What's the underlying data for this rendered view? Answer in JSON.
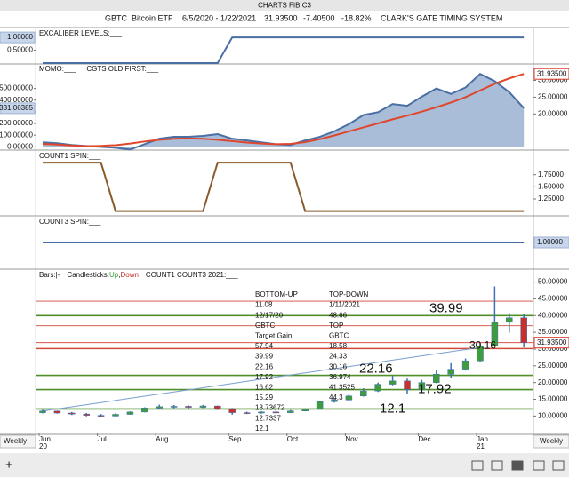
{
  "window": {
    "title": "CHARTS FIB C3"
  },
  "header": {
    "symbol": "GBTC",
    "name": "Bitcoin ETF",
    "range": "6/5/2020 - 1/22/2021",
    "last": "31.93500",
    "change": "-7.40500",
    "change_pct": "-18.82%",
    "system": "CLARK'S GATE TIMING SYSTEM"
  },
  "footer": {
    "left_interval": "Weekly",
    "right_interval": "Weekly",
    "add_button": "+"
  },
  "chart_data": [
    {
      "type": "line",
      "ytick_side": "left",
      "series": [
        {
          "name": "EXCALIBER LEVELS:___",
          "color": "#4a6fa5",
          "values": [
            0,
            0,
            0,
            0,
            0,
            0,
            0,
            0,
            0,
            0,
            0,
            0,
            0,
            1,
            1,
            1,
            1,
            1,
            1,
            1,
            1,
            1,
            1,
            1,
            1,
            1,
            1,
            1,
            1,
            1,
            1,
            1,
            1,
            1
          ]
        }
      ],
      "ylim": [
        0,
        1.35
      ],
      "yticks": [
        {
          "value": 0.5,
          "label": "0.50000"
        }
      ],
      "last_value": {
        "value": 1,
        "label": "1.00000"
      }
    },
    {
      "type": "line",
      "ytick_side": "left",
      "series": [
        {
          "name": "MOMO:___",
          "color": "#4a6fa5",
          "area_color": "#a9bcd8",
          "values": [
            39,
            31,
            16,
            8,
            0,
            -8,
            -23,
            23,
            70,
            86,
            86,
            94,
            109,
            70,
            55,
            39,
            23,
            16,
            55,
            86,
            133,
            195,
            273,
            297,
            367,
            352,
            430,
            500,
            453,
            508,
            625,
            563,
            469,
            331.06385
          ]
        },
        {
          "name": "CGTS OLD FIRST:___",
          "color": "#e0462a",
          "axis": "y2",
          "values": [
            11.1,
            10.9,
            10.6,
            10.4,
            10.5,
            10.7,
            11.2,
            11.8,
            12.3,
            12.6,
            12.7,
            12.6,
            12.3,
            11.9,
            11.5,
            11.2,
            11.0,
            11.1,
            11.6,
            12.5,
            13.6,
            14.8,
            16.0,
            17.2,
            18.4,
            19.5,
            20.7,
            22.0,
            23.4,
            25.0,
            27.0,
            29.0,
            30.6,
            31.935
          ]
        }
      ],
      "ylim": [
        -20,
        710
      ],
      "yticks": [
        {
          "value": 500,
          "label": "500.00000"
        },
        {
          "value": 400,
          "label": "400.00000"
        },
        {
          "value": 300,
          "label": "300.00000"
        },
        {
          "value": 200,
          "label": "200.00000"
        },
        {
          "value": 100,
          "label": "100.00000"
        },
        {
          "value": 0,
          "label": "0.00000"
        }
      ],
      "last_value": {
        "value": 331.06385,
        "label": "331.06385"
      },
      "y2lim": [
        9.5,
        34.9
      ],
      "y2ticks": [
        {
          "value": 30,
          "label": "30.00000"
        },
        {
          "value": 25,
          "label": "25.00000"
        },
        {
          "value": 20,
          "label": "20.00000"
        }
      ],
      "y2_last_value": {
        "value": 31.935,
        "label": "31.93500",
        "color": "#d9382c"
      }
    },
    {
      "type": "line",
      "ytick_side": "right",
      "series": [
        {
          "name": "COUNT1 SPIN:___",
          "color": "#8b5a2b",
          "values": [
            2,
            2,
            2,
            2,
            2,
            1,
            1,
            1,
            1,
            1,
            1,
            1,
            2,
            2,
            2,
            2,
            2,
            2,
            1,
            1,
            1,
            1,
            1,
            1,
            1,
            1,
            1,
            1,
            1,
            1,
            1,
            1,
            1,
            1
          ]
        }
      ],
      "ylim": [
        0.92,
        2.24
      ],
      "yticks": [
        {
          "value": 1.75,
          "label": "1.75000"
        },
        {
          "value": 1.5,
          "label": "1.50000"
        },
        {
          "value": 1.25,
          "label": "1.25000"
        }
      ]
    },
    {
      "type": "line",
      "ytick_side": "right",
      "series": [
        {
          "name": "COUNT3 SPIN:___",
          "color": "#4a6fa5",
          "values": [
            1,
            1,
            1,
            1,
            1,
            1,
            1,
            1,
            1,
            1,
            1,
            1,
            1,
            1,
            1,
            1,
            1,
            1,
            1,
            1,
            1,
            1,
            1,
            1,
            1,
            1,
            1,
            1,
            1,
            1,
            1,
            1,
            1,
            1
          ]
        }
      ],
      "ylim": [
        0,
        2
      ],
      "last_value": {
        "value": 1,
        "label": "1.00000"
      }
    },
    {
      "type": "candlestick",
      "ytick_side": "right",
      "legend": [
        {
          "text": "Bars:|-"
        },
        {
          "text": "Candlesticks:"
        },
        {
          "text": "Up",
          "color": "#3e9b3e"
        },
        {
          "text": ","
        },
        {
          "text": "Down",
          "color": "#c8302a"
        },
        {
          "text": "COUNT1 COUNT3 2021:___"
        }
      ],
      "categories": [
        "Jun",
        null,
        null,
        null,
        "Jul",
        null,
        null,
        null,
        "Aug",
        null,
        null,
        null,
        null,
        "Sep",
        null,
        null,
        null,
        "Oct",
        null,
        null,
        null,
        "Nov",
        null,
        null,
        null,
        null,
        "Dec",
        null,
        null,
        null,
        "Jan",
        null,
        null,
        null
      ],
      "category_years": [
        "20",
        null,
        null,
        null,
        null,
        null,
        null,
        null,
        null,
        null,
        null,
        null,
        null,
        null,
        null,
        null,
        null,
        null,
        null,
        null,
        null,
        null,
        null,
        null,
        null,
        null,
        null,
        null,
        null,
        null,
        "21",
        null,
        null,
        null
      ],
      "open": [
        11.0,
        11.5,
        10.9,
        10.6,
        10.2,
        10.0,
        10.5,
        11.2,
        12.4,
        12.8,
        12.9,
        12.6,
        13.0,
        12.2,
        11.0,
        10.9,
        11.2,
        11.0,
        11.5,
        12.0,
        14.3,
        14.8,
        16.0,
        17.5,
        19.5,
        20.5,
        18.0,
        20.0,
        22.5,
        24.0,
        26.5,
        31.0,
        38.0,
        39.34
      ],
      "high": [
        11.9,
        11.6,
        11.2,
        10.9,
        10.6,
        10.8,
        11.4,
        12.6,
        13.4,
        13.3,
        13.2,
        13.3,
        13.1,
        12.4,
        11.3,
        11.4,
        11.5,
        11.8,
        12.3,
        14.6,
        15.2,
        16.5,
        18.3,
        20.0,
        22.0,
        21.2,
        20.8,
        23.6,
        25.8,
        27.2,
        32.0,
        48.7,
        40.8,
        40.5
      ],
      "low": [
        10.8,
        10.7,
        10.3,
        9.9,
        9.8,
        9.9,
        10.4,
        11.1,
        12.2,
        12.3,
        12.2,
        12.4,
        11.8,
        10.4,
        10.6,
        10.7,
        10.8,
        10.9,
        11.4,
        11.9,
        14.0,
        14.6,
        15.8,
        17.2,
        19.2,
        16.5,
        17.6,
        19.8,
        21.5,
        23.6,
        26.2,
        30.8,
        34.9,
        30.5
      ],
      "close": [
        11.5,
        10.9,
        10.6,
        10.2,
        10.0,
        10.5,
        11.2,
        12.4,
        12.8,
        12.9,
        12.6,
        13.0,
        12.2,
        11.0,
        10.9,
        11.2,
        11.0,
        11.5,
        12.0,
        14.3,
        14.8,
        16.0,
        17.5,
        19.5,
        20.5,
        18.0,
        20.0,
        22.5,
        24.0,
        26.5,
        31.0,
        38.0,
        39.34,
        31.935
      ],
      "up_color": "#3e9b3e",
      "down_color": "#c8302a",
      "wick_color": "#3f6fb5",
      "trend_line": {
        "color": "#7a9fd0",
        "values": [
          11.5,
          12.13,
          12.77,
          13.4,
          14.03,
          14.67,
          15.3,
          15.93,
          16.57,
          17.2,
          17.83,
          18.47,
          19.1,
          19.73,
          20.37,
          21,
          21.63,
          22.27,
          22.9,
          23.53,
          24.17,
          24.8,
          25.43,
          26.07,
          26.7,
          27.33,
          27.97,
          28.6,
          29.23,
          29.87,
          30.5,
          null,
          null,
          null
        ]
      },
      "levels": [
        {
          "label": "39.99",
          "value": 39.99,
          "color": "#4f8f2a"
        },
        {
          "label": "30.16",
          "value": 30.16,
          "color": "#d04a3a"
        },
        {
          "label": "22.16",
          "value": 22.16,
          "color": "#4f8f2a"
        },
        {
          "label": "17.92",
          "value": 17.92,
          "color": "#4f8f2a"
        },
        {
          "label": "12.1",
          "value": 12.1,
          "color": "#4f8f2a"
        },
        {
          "value": 44.3,
          "color": "#d04a3a"
        },
        {
          "value": 36.974,
          "color": "#d04a3a"
        }
      ],
      "table": {
        "left_color": "#5a9a2a",
        "right_color": "#d04a3a",
        "left": [
          "BOTTOM-UP",
          "11.08",
          "12/17/20",
          "GBTC",
          "Target Gain",
          "57.94",
          "39.99",
          "22.16",
          "17.92",
          "16.62",
          "15.29",
          "13.73672",
          "12.7337",
          "12.1"
        ],
        "right": [
          "TOP-DOWN",
          "1/11/2021",
          "48.66",
          "TOP",
          "GBTC",
          "18.58",
          "24.33",
          "30.16",
          "36.974",
          "41.3525",
          "44.3"
        ]
      },
      "ylim": [
        4.8,
        53.6
      ],
      "yticks": [
        {
          "value": 50,
          "label": "50.00000"
        },
        {
          "value": 45,
          "label": "45.00000"
        },
        {
          "value": 40,
          "label": "40.00000"
        },
        {
          "value": 35,
          "label": "35.00000"
        },
        {
          "value": 30,
          "label": "30.00000"
        },
        {
          "value": 25,
          "label": "25.00000"
        },
        {
          "value": 20,
          "label": "20.00000"
        },
        {
          "value": 15,
          "label": "15.00000"
        },
        {
          "value": 10,
          "label": "10.00000"
        }
      ],
      "last_value": {
        "value": 31.935,
        "label": "31.93500",
        "color": "#d9382c"
      }
    }
  ]
}
